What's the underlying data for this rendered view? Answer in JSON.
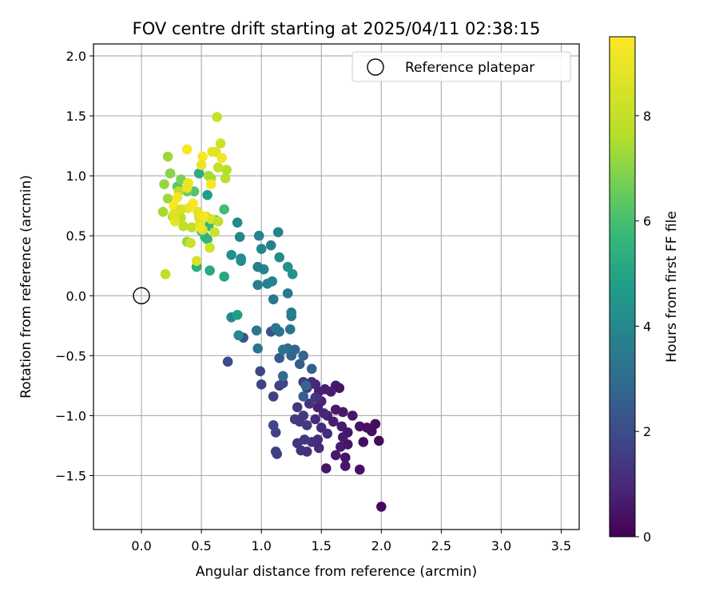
{
  "chart_data": {
    "type": "scatter",
    "title": "FOV centre drift starting at 2025/04/11 02:38:15",
    "xlabel": "Angular distance from reference (arcmin)",
    "ylabel": "Rotation from reference (arcmin)",
    "xlim": [
      -0.4,
      3.65
    ],
    "ylim": [
      -1.95,
      2.1
    ],
    "x_ticks": [
      0.0,
      0.5,
      1.0,
      1.5,
      2.0,
      2.5,
      3.0,
      3.5
    ],
    "x_tick_labels": [
      "0.0",
      "0.5",
      "1.0",
      "1.5",
      "2.0",
      "2.5",
      "3.0",
      "3.5"
    ],
    "y_ticks": [
      -1.5,
      -1.0,
      -0.5,
      0.0,
      0.5,
      1.0,
      1.5,
      2.0
    ],
    "y_tick_labels": [
      "−1.5",
      "−1.0",
      "−0.5",
      "0.0",
      "0.5",
      "1.0",
      "1.5",
      "2.0"
    ],
    "grid": true,
    "legend": {
      "entries": [
        "Reference platepar"
      ],
      "placement": "top-right"
    },
    "reference_point": {
      "name": "Reference platepar",
      "x": 0.0,
      "y": 0.0
    },
    "colorbar": {
      "label": "Hours from first FF file",
      "colormap": "viridis",
      "range": [
        0,
        9.5
      ],
      "ticks": [
        0,
        2,
        4,
        6,
        8
      ],
      "tick_labels": [
        "0",
        "2",
        "4",
        "6",
        "8"
      ]
    },
    "series": [
      {
        "points": [
          [
            2.0,
            -1.76,
            0.2
          ],
          [
            1.54,
            -1.44,
            0.5
          ],
          [
            1.82,
            -1.45,
            0.4
          ],
          [
            1.7,
            -1.42,
            0.5
          ],
          [
            1.62,
            -1.33,
            0.6
          ],
          [
            1.7,
            -1.35,
            0.5
          ],
          [
            1.98,
            -1.21,
            0.3
          ],
          [
            1.85,
            -1.22,
            0.3
          ],
          [
            1.92,
            -1.13,
            0.4
          ],
          [
            1.95,
            -1.07,
            0.3
          ],
          [
            1.88,
            -1.1,
            0.4
          ],
          [
            1.82,
            -1.09,
            0.4
          ],
          [
            1.72,
            -1.14,
            0.5
          ],
          [
            1.68,
            -1.18,
            0.6
          ],
          [
            1.66,
            -1.26,
            0.7
          ],
          [
            1.72,
            -1.24,
            0.5
          ],
          [
            1.67,
            -1.09,
            0.6
          ],
          [
            1.6,
            -1.05,
            0.7
          ],
          [
            1.55,
            -1.0,
            0.7
          ],
          [
            1.62,
            -0.95,
            0.6
          ],
          [
            1.68,
            -0.97,
            0.6
          ],
          [
            1.76,
            -1.0,
            0.5
          ],
          [
            1.62,
            -0.75,
            0.6
          ],
          [
            1.65,
            -0.77,
            0.5
          ],
          [
            1.58,
            -0.8,
            0.7
          ],
          [
            1.53,
            -0.78,
            0.7
          ],
          [
            1.48,
            -0.8,
            0.8
          ],
          [
            1.45,
            -0.74,
            0.9
          ],
          [
            1.42,
            -0.72,
            1.0
          ],
          [
            1.5,
            -0.88,
            0.9
          ],
          [
            1.47,
            -0.93,
            0.8
          ],
          [
            1.52,
            -0.98,
            0.9
          ],
          [
            1.45,
            -1.03,
            1.0
          ],
          [
            1.5,
            -1.1,
            1.0
          ],
          [
            1.55,
            -1.15,
            1.1
          ],
          [
            1.47,
            -1.2,
            1.1
          ],
          [
            1.42,
            -1.22,
            1.2
          ],
          [
            1.38,
            -1.3,
            1.2
          ],
          [
            1.48,
            -1.27,
            1.0
          ],
          [
            1.33,
            -1.29,
            1.3
          ],
          [
            1.3,
            -1.23,
            1.3
          ],
          [
            1.36,
            -1.2,
            1.3
          ],
          [
            1.32,
            -1.05,
            1.4
          ],
          [
            1.28,
            -1.03,
            1.5
          ],
          [
            1.35,
            -1.0,
            1.5
          ],
          [
            1.3,
            -0.93,
            1.4
          ],
          [
            1.38,
            -1.08,
            1.5
          ],
          [
            1.4,
            -0.9,
            1.3
          ],
          [
            1.45,
            -0.85,
            1.3
          ],
          [
            1.38,
            -0.77,
            1.4
          ],
          [
            1.35,
            -0.72,
            1.5
          ],
          [
            1.13,
            -1.32,
            1.5
          ],
          [
            1.12,
            -1.3,
            1.6
          ],
          [
            1.12,
            -1.14,
            1.7
          ],
          [
            1.1,
            -1.08,
            1.8
          ],
          [
            1.1,
            -0.84,
            1.6
          ],
          [
            1.15,
            -0.75,
            1.7
          ],
          [
            1.18,
            -0.73,
            1.8
          ],
          [
            1.0,
            -0.74,
            1.7
          ],
          [
            0.99,
            -0.63,
            1.8
          ],
          [
            0.72,
            -0.55,
            2.0
          ],
          [
            0.85,
            -0.35,
            2.2
          ],
          [
            1.08,
            -0.3,
            2.2
          ],
          [
            1.15,
            -0.52,
            2.4
          ],
          [
            1.25,
            -0.5,
            2.7
          ],
          [
            1.32,
            -0.57,
            2.5
          ],
          [
            1.28,
            -0.45,
            2.8
          ],
          [
            1.22,
            -0.44,
            3.0
          ],
          [
            1.18,
            -0.45,
            3.2
          ],
          [
            1.42,
            -0.61,
            2.6
          ],
          [
            1.35,
            -0.84,
            2.6
          ],
          [
            1.35,
            -0.5,
            2.8
          ],
          [
            1.37,
            -0.75,
            2.9
          ],
          [
            1.18,
            -0.67,
            3.0
          ],
          [
            1.12,
            -0.27,
            3.4
          ],
          [
            1.15,
            -0.3,
            3.2
          ],
          [
            1.24,
            -0.28,
            3.3
          ],
          [
            1.25,
            -0.17,
            3.5
          ],
          [
            1.25,
            -0.14,
            3.6
          ],
          [
            1.22,
            0.02,
            3.5
          ],
          [
            1.1,
            -0.03,
            3.4
          ],
          [
            0.97,
            -0.44,
            3.3
          ],
          [
            0.96,
            -0.29,
            3.4
          ],
          [
            0.81,
            -0.33,
            4.0
          ],
          [
            0.75,
            -0.18,
            4.0
          ],
          [
            0.97,
            0.09,
            3.6
          ],
          [
            1.05,
            0.1,
            3.8
          ],
          [
            1.09,
            0.12,
            3.8
          ],
          [
            1.02,
            0.22,
            3.8
          ],
          [
            0.97,
            0.24,
            3.6
          ],
          [
            1.0,
            0.39,
            3.9
          ],
          [
            1.08,
            0.42,
            3.7
          ],
          [
            1.14,
            0.53,
            3.8
          ],
          [
            0.98,
            0.5,
            3.8
          ],
          [
            0.82,
            0.49,
            3.9
          ],
          [
            0.8,
            0.61,
            4.0
          ],
          [
            0.83,
            0.29,
            4.1
          ],
          [
            0.83,
            0.31,
            4.2
          ],
          [
            0.75,
            0.34,
            4.3
          ],
          [
            1.15,
            0.32,
            4.1
          ],
          [
            1.22,
            0.24,
            4.3
          ],
          [
            1.26,
            0.18,
            4.4
          ],
          [
            0.8,
            -0.16,
            4.8
          ],
          [
            0.69,
            0.16,
            5.0
          ],
          [
            0.57,
            0.21,
            5.2
          ],
          [
            0.46,
            0.24,
            5.4
          ],
          [
            0.55,
            0.47,
            5.6
          ],
          [
            0.53,
            0.49,
            5.5
          ],
          [
            0.5,
            0.54,
            5.9
          ],
          [
            0.56,
            0.58,
            5.7
          ],
          [
            0.69,
            0.72,
            5.9
          ],
          [
            0.62,
            0.63,
            6.1
          ],
          [
            0.55,
            0.84,
            4.8
          ],
          [
            0.48,
            1.02,
            5.3
          ],
          [
            0.44,
            0.87,
            6.2
          ],
          [
            0.3,
            0.91,
            6.3
          ],
          [
            0.38,
            0.87,
            6.6
          ],
          [
            0.33,
            0.97,
            6.8
          ],
          [
            0.24,
            1.02,
            7.0
          ],
          [
            0.19,
            0.93,
            7.2
          ],
          [
            0.22,
            0.81,
            7.3
          ],
          [
            0.18,
            0.7,
            7.4
          ],
          [
            0.26,
            0.66,
            7.6
          ],
          [
            0.33,
            0.65,
            7.8
          ],
          [
            0.31,
            0.87,
            7.9
          ],
          [
            0.35,
            0.58,
            7.9
          ],
          [
            0.38,
            0.45,
            7.2
          ],
          [
            0.41,
            0.44,
            8.2
          ],
          [
            0.2,
            0.18,
            7.9
          ],
          [
            0.46,
            0.29,
            8.5
          ],
          [
            0.42,
            0.57,
            7.8
          ],
          [
            0.51,
            0.55,
            8.6
          ],
          [
            0.49,
            0.61,
            8.7
          ],
          [
            0.58,
            0.64,
            8.6
          ],
          [
            0.64,
            0.62,
            8.0
          ],
          [
            0.61,
            0.53,
            8.2
          ],
          [
            0.57,
            0.4,
            8.3
          ],
          [
            0.54,
            0.66,
            8.4
          ],
          [
            0.48,
            0.65,
            8.6
          ],
          [
            0.22,
            1.16,
            7.3
          ],
          [
            0.56,
            1.0,
            7.5
          ],
          [
            0.7,
            0.98,
            7.7
          ],
          [
            0.71,
            1.05,
            7.6
          ],
          [
            0.64,
            1.07,
            8.1
          ],
          [
            0.58,
            0.98,
            7.4
          ],
          [
            0.63,
            1.49,
            8.0
          ],
          [
            0.66,
            1.27,
            8.2
          ],
          [
            0.62,
            1.2,
            8.6
          ],
          [
            0.59,
            1.2,
            8.8
          ],
          [
            0.67,
            1.15,
            9.2
          ],
          [
            0.51,
            1.16,
            9.3
          ],
          [
            0.5,
            1.09,
            9.0
          ],
          [
            0.58,
            0.93,
            9.3
          ],
          [
            0.38,
            1.22,
            9.4
          ],
          [
            0.39,
            0.94,
            9.1
          ],
          [
            0.38,
            0.9,
            9.0
          ],
          [
            0.3,
            0.82,
            9.3
          ],
          [
            0.43,
            0.77,
            9.4
          ],
          [
            0.27,
            0.75,
            9.4
          ],
          [
            0.28,
            0.62,
            8.9
          ],
          [
            0.39,
            0.73,
            9.0
          ],
          [
            0.47,
            0.7,
            8.8
          ],
          [
            0.49,
            0.57,
            9.2
          ],
          [
            0.52,
            0.66,
            9.2
          ],
          [
            0.33,
            0.72,
            8.5
          ],
          [
            0.27,
            0.68,
            8.7
          ]
        ]
      }
    ]
  }
}
